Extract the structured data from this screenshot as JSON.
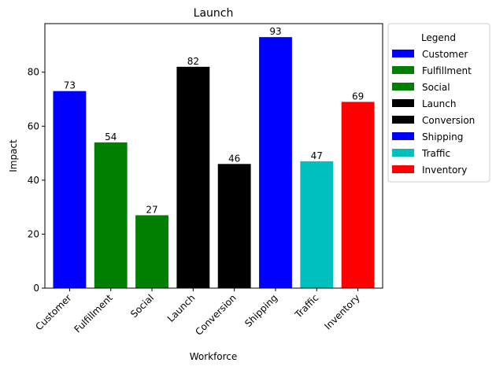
{
  "chart_data": {
    "type": "bar",
    "title": "Launch",
    "xlabel": "Workforce",
    "ylabel": "Impact",
    "ylim": [
      0,
      98
    ],
    "yticks": [
      0,
      20,
      40,
      60,
      80
    ],
    "grid": false,
    "categories": [
      "Customer",
      "Fulfillment",
      "Social",
      "Launch",
      "Conversion",
      "Shipping",
      "Traffic",
      "Inventory"
    ],
    "values": [
      73,
      54,
      27,
      82,
      46,
      93,
      47,
      69
    ],
    "bar_colors": [
      "#0000ff",
      "#008000",
      "#008000",
      "#000000",
      "#000000",
      "#0000ff",
      "#00bfbf",
      "#ff0000"
    ],
    "legend": {
      "title": "Legend",
      "placement": "outside-right",
      "entries": [
        {
          "label": "Customer",
          "color": "#0000ff"
        },
        {
          "label": "Fulfillment",
          "color": "#008000"
        },
        {
          "label": "Social",
          "color": "#008000"
        },
        {
          "label": "Launch",
          "color": "#000000"
        },
        {
          "label": "Conversion",
          "color": "#000000"
        },
        {
          "label": "Shipping",
          "color": "#0000ff"
        },
        {
          "label": "Traffic",
          "color": "#00bfbf"
        },
        {
          "label": "Inventory",
          "color": "#ff0000"
        }
      ]
    }
  }
}
